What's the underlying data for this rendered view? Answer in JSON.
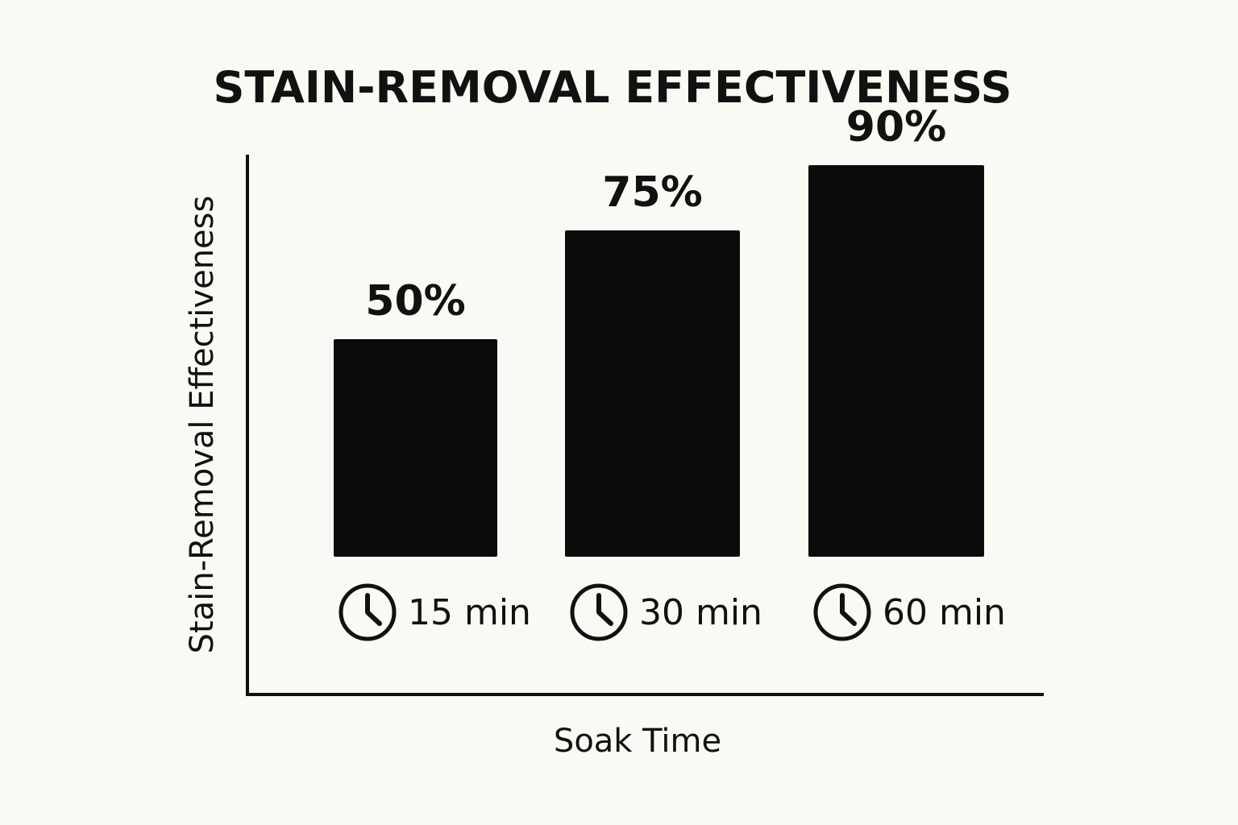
{
  "chart_data": {
    "type": "bar",
    "title": "STAIN-REMOVAL EFFECTIVENESS",
    "xlabel": "Soak Time",
    "ylabel": "Stain-Removal Effectiveness",
    "categories": [
      "15 min",
      "30 min",
      "60 min"
    ],
    "values": [
      50,
      75,
      90
    ],
    "value_labels": [
      "50%",
      "75%",
      "90%"
    ],
    "category_icon": "clock-icon",
    "ylim": [
      0,
      100
    ],
    "grid": false,
    "legend": "none",
    "bar_color": "#0b0b0b",
    "axis_color": "#111111",
    "background_color": "#fbf9f3"
  }
}
